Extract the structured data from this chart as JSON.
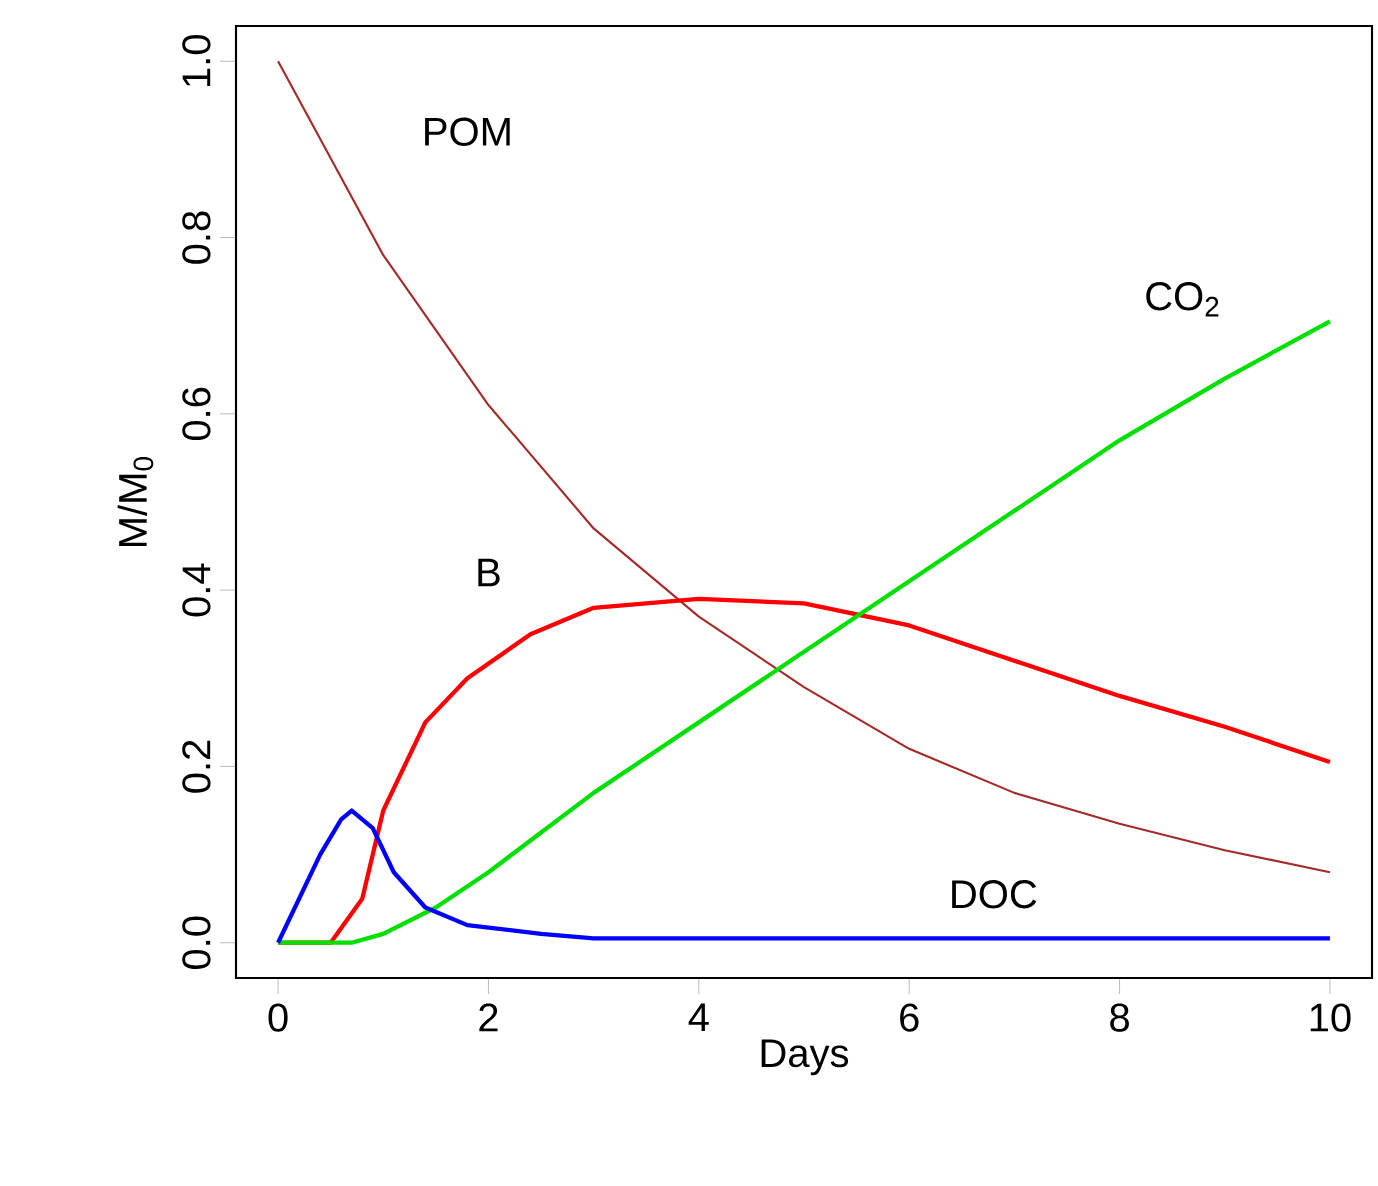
{
  "chart_data": {
    "type": "line",
    "xlabel": "Days",
    "ylabel": "M/M$_{0}$",
    "xlim": [
      -0.4,
      10.4
    ],
    "ylim": [
      -0.04,
      1.04
    ],
    "xticks": [
      0,
      2,
      4,
      6,
      8,
      10
    ],
    "yticks": [
      {
        "value": 0,
        "label": "0.0"
      },
      {
        "value": 0.2,
        "label": "0.2"
      },
      {
        "value": 0.4,
        "label": "0.4"
      },
      {
        "value": 0.6,
        "label": "0.6"
      },
      {
        "value": 0.8,
        "label": "0.8"
      },
      {
        "value": 1,
        "label": "1.0"
      }
    ],
    "grid": false,
    "marker": "none",
    "line_style": "solid",
    "series": [
      {
        "name": "POM",
        "color": "#a52a2a",
        "x": [
          0,
          1,
          2,
          3,
          4,
          5,
          6,
          7,
          8,
          9,
          10
        ],
        "values": [
          1.0,
          0.78,
          0.61,
          0.47,
          0.37,
          0.29,
          0.22,
          0.17,
          0.135,
          0.105,
          0.08
        ]
      },
      {
        "name": "B",
        "color": "#ff0000",
        "x": [
          0,
          0.5,
          0.8,
          1.0,
          1.4,
          1.8,
          2.4,
          3,
          4,
          5,
          6,
          7,
          8,
          9,
          10
        ],
        "values": [
          0,
          0,
          0.05,
          0.15,
          0.25,
          0.3,
          0.35,
          0.38,
          0.39,
          0.385,
          0.36,
          0.32,
          0.28,
          0.245,
          0.205
        ]
      },
      {
        "name": "CO$_{2}$",
        "color": "#00e000",
        "x": [
          0,
          0.7,
          1,
          1.5,
          2,
          3,
          4,
          5,
          6,
          7,
          8,
          9,
          10
        ],
        "values": [
          0,
          0,
          0.01,
          0.04,
          0.08,
          0.17,
          0.25,
          0.33,
          0.41,
          0.49,
          0.57,
          0.64,
          0.705
        ]
      },
      {
        "name": "DOC",
        "color": "#0000ff",
        "x": [
          0,
          0.2,
          0.4,
          0.6,
          0.7,
          0.9,
          1.1,
          1.4,
          1.8,
          2.5,
          3,
          4,
          6,
          8,
          10
        ],
        "values": [
          0,
          0.05,
          0.1,
          0.14,
          0.15,
          0.13,
          0.08,
          0.04,
          0.02,
          0.01,
          0.005,
          0.005,
          0.005,
          0.005,
          0.005
        ]
      }
    ]
  }
}
